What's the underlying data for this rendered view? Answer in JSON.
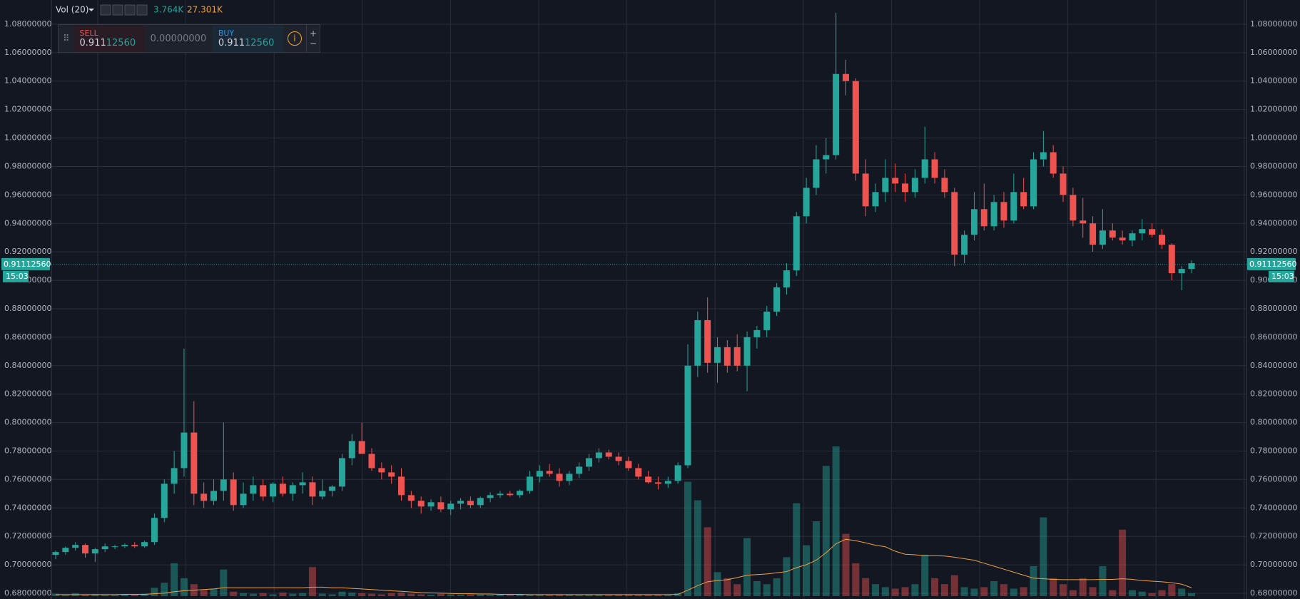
{
  "chart_data": {
    "type": "candlestick",
    "toolbar": {
      "label": "Vol (20)",
      "volume": "3.764K",
      "ma": "27.301K"
    },
    "trade": {
      "sell_label": "SELL",
      "sell_major": "0.911",
      "sell_minor": "12560",
      "spread": "0.00000000",
      "buy_label": "BUY",
      "buy_major": "0.911",
      "buy_minor": "12560",
      "plus": "+",
      "minus": "−"
    },
    "last_price": {
      "value": 0.9111256,
      "label": "0.91112560",
      "time": "15:03"
    },
    "up_color": "#26a69a",
    "down_color": "#ef5350",
    "grid": true,
    "ylim": [
      0.676,
      1.097
    ],
    "yticks": [
      {
        "value": 0.68,
        "label": "0.68000000"
      },
      {
        "value": 0.7,
        "label": "0.70000000"
      },
      {
        "value": 0.72,
        "label": "0.72000000"
      },
      {
        "value": 0.74,
        "label": "0.74000000"
      },
      {
        "value": 0.76,
        "label": "0.76000000"
      },
      {
        "value": 0.78,
        "label": "0.78000000"
      },
      {
        "value": 0.8,
        "label": "0.80000000"
      },
      {
        "value": 0.82,
        "label": "0.82000000"
      },
      {
        "value": 0.84,
        "label": "0.84000000"
      },
      {
        "value": 0.86,
        "label": "0.86000000"
      },
      {
        "value": 0.88,
        "label": "0.88000000"
      },
      {
        "value": 0.9,
        "label": "0.90000000"
      },
      {
        "value": 0.92,
        "label": "0.92000000"
      },
      {
        "value": 0.94,
        "label": "0.94000000"
      },
      {
        "value": 0.96,
        "label": "0.96000000"
      },
      {
        "value": 0.98,
        "label": "0.98000000"
      },
      {
        "value": 1.0,
        "label": "1.00000000"
      },
      {
        "value": 1.02,
        "label": "1.02000000"
      },
      {
        "value": 1.04,
        "label": "1.04000000"
      },
      {
        "value": 1.06,
        "label": "1.06000000"
      },
      {
        "value": 1.08,
        "label": "1.08000000"
      }
    ],
    "candles": [
      [
        0.707,
        0.71,
        0.704,
        0.709
      ],
      [
        0.709,
        0.713,
        0.707,
        0.712
      ],
      [
        0.712,
        0.716,
        0.71,
        0.714
      ],
      [
        0.714,
        0.715,
        0.705,
        0.708
      ],
      [
        0.708,
        0.712,
        0.702,
        0.711
      ],
      [
        0.711,
        0.715,
        0.709,
        0.713
      ],
      [
        0.713,
        0.714,
        0.711,
        0.713
      ],
      [
        0.713,
        0.715,
        0.712,
        0.714
      ],
      [
        0.714,
        0.716,
        0.712,
        0.713
      ],
      [
        0.713,
        0.717,
        0.712,
        0.716
      ],
      [
        0.716,
        0.736,
        0.714,
        0.733
      ],
      [
        0.733,
        0.76,
        0.73,
        0.757
      ],
      [
        0.757,
        0.78,
        0.75,
        0.768
      ],
      [
        0.768,
        0.852,
        0.762,
        0.793
      ],
      [
        0.793,
        0.815,
        0.742,
        0.75
      ],
      [
        0.75,
        0.758,
        0.74,
        0.745
      ],
      [
        0.745,
        0.76,
        0.742,
        0.752
      ],
      [
        0.752,
        0.8,
        0.745,
        0.76
      ],
      [
        0.76,
        0.765,
        0.738,
        0.742
      ],
      [
        0.742,
        0.758,
        0.74,
        0.75
      ],
      [
        0.75,
        0.762,
        0.745,
        0.756
      ],
      [
        0.756,
        0.76,
        0.745,
        0.748
      ],
      [
        0.748,
        0.758,
        0.744,
        0.757
      ],
      [
        0.757,
        0.762,
        0.748,
        0.75
      ],
      [
        0.75,
        0.758,
        0.745,
        0.756
      ],
      [
        0.756,
        0.765,
        0.75,
        0.758
      ],
      [
        0.758,
        0.762,
        0.742,
        0.748
      ],
      [
        0.748,
        0.76,
        0.746,
        0.752
      ],
      [
        0.752,
        0.756,
        0.748,
        0.755
      ],
      [
        0.755,
        0.778,
        0.752,
        0.775
      ],
      [
        0.775,
        0.792,
        0.77,
        0.787
      ],
      [
        0.787,
        0.8,
        0.778,
        0.778
      ],
      [
        0.778,
        0.782,
        0.766,
        0.768
      ],
      [
        0.768,
        0.772,
        0.76,
        0.765
      ],
      [
        0.765,
        0.77,
        0.757,
        0.762
      ],
      [
        0.762,
        0.768,
        0.745,
        0.749
      ],
      [
        0.749,
        0.752,
        0.74,
        0.745
      ],
      [
        0.745,
        0.748,
        0.736,
        0.741
      ],
      [
        0.741,
        0.746,
        0.738,
        0.744
      ],
      [
        0.744,
        0.748,
        0.737,
        0.739
      ],
      [
        0.739,
        0.745,
        0.735,
        0.743
      ],
      [
        0.743,
        0.747,
        0.739,
        0.745
      ],
      [
        0.745,
        0.748,
        0.74,
        0.742
      ],
      [
        0.742,
        0.748,
        0.74,
        0.747
      ],
      [
        0.747,
        0.751,
        0.744,
        0.749
      ],
      [
        0.749,
        0.752,
        0.747,
        0.75
      ],
      [
        0.75,
        0.752,
        0.748,
        0.749
      ],
      [
        0.749,
        0.753,
        0.747,
        0.752
      ],
      [
        0.752,
        0.766,
        0.75,
        0.762
      ],
      [
        0.762,
        0.77,
        0.758,
        0.766
      ],
      [
        0.766,
        0.771,
        0.762,
        0.764
      ],
      [
        0.764,
        0.768,
        0.755,
        0.759
      ],
      [
        0.759,
        0.766,
        0.756,
        0.764
      ],
      [
        0.764,
        0.772,
        0.761,
        0.769
      ],
      [
        0.769,
        0.778,
        0.766,
        0.775
      ],
      [
        0.775,
        0.782,
        0.772,
        0.779
      ],
      [
        0.779,
        0.781,
        0.774,
        0.776
      ],
      [
        0.776,
        0.779,
        0.77,
        0.773
      ],
      [
        0.773,
        0.776,
        0.766,
        0.768
      ],
      [
        0.768,
        0.771,
        0.76,
        0.762
      ],
      [
        0.762,
        0.766,
        0.757,
        0.758
      ],
      [
        0.758,
        0.762,
        0.753,
        0.757
      ],
      [
        0.757,
        0.762,
        0.754,
        0.759
      ],
      [
        0.759,
        0.772,
        0.757,
        0.77
      ],
      [
        0.77,
        0.855,
        0.768,
        0.84
      ],
      [
        0.84,
        0.878,
        0.832,
        0.872
      ],
      [
        0.872,
        0.888,
        0.835,
        0.842
      ],
      [
        0.842,
        0.86,
        0.828,
        0.853
      ],
      [
        0.853,
        0.858,
        0.835,
        0.84
      ],
      [
        0.853,
        0.862,
        0.836,
        0.84
      ],
      [
        0.84,
        0.864,
        0.822,
        0.86
      ],
      [
        0.86,
        0.868,
        0.852,
        0.865
      ],
      [
        0.865,
        0.882,
        0.86,
        0.878
      ],
      [
        0.878,
        0.898,
        0.875,
        0.895
      ],
      [
        0.895,
        0.912,
        0.89,
        0.907
      ],
      [
        0.907,
        0.948,
        0.903,
        0.945
      ],
      [
        0.945,
        0.972,
        0.94,
        0.965
      ],
      [
        0.965,
        0.995,
        0.96,
        0.985
      ],
      [
        0.985,
        1.0,
        0.975,
        0.988
      ],
      [
        0.988,
        1.088,
        0.985,
        1.045
      ],
      [
        1.045,
        1.055,
        1.03,
        1.04
      ],
      [
        1.04,
        1.042,
        0.97,
        0.975
      ],
      [
        0.975,
        0.985,
        0.945,
        0.952
      ],
      [
        0.952,
        0.968,
        0.948,
        0.962
      ],
      [
        0.962,
        0.985,
        0.955,
        0.972
      ],
      [
        0.972,
        0.982,
        0.962,
        0.968
      ],
      [
        0.968,
        0.975,
        0.955,
        0.962
      ],
      [
        0.962,
        0.978,
        0.958,
        0.972
      ],
      [
        0.972,
        1.008,
        0.968,
        0.985
      ],
      [
        0.985,
        0.99,
        0.968,
        0.972
      ],
      [
        0.972,
        0.978,
        0.958,
        0.962
      ],
      [
        0.962,
        0.965,
        0.91,
        0.918
      ],
      [
        0.918,
        0.935,
        0.912,
        0.932
      ],
      [
        0.932,
        0.962,
        0.928,
        0.95
      ],
      [
        0.95,
        0.968,
        0.935,
        0.938
      ],
      [
        0.938,
        0.96,
        0.935,
        0.955
      ],
      [
        0.955,
        0.962,
        0.937,
        0.942
      ],
      [
        0.942,
        0.975,
        0.94,
        0.962
      ],
      [
        0.962,
        0.972,
        0.95,
        0.952
      ],
      [
        0.952,
        0.99,
        0.95,
        0.985
      ],
      [
        0.985,
        1.005,
        0.98,
        0.99
      ],
      [
        0.99,
        0.995,
        0.972,
        0.975
      ],
      [
        0.975,
        0.98,
        0.955,
        0.96
      ],
      [
        0.96,
        0.965,
        0.938,
        0.942
      ],
      [
        0.942,
        0.958,
        0.93,
        0.94
      ],
      [
        0.94,
        0.945,
        0.92,
        0.925
      ],
      [
        0.925,
        0.95,
        0.922,
        0.935
      ],
      [
        0.935,
        0.94,
        0.928,
        0.93
      ],
      [
        0.93,
        0.935,
        0.925,
        0.928
      ],
      [
        0.928,
        0.935,
        0.924,
        0.933
      ],
      [
        0.933,
        0.943,
        0.928,
        0.936
      ],
      [
        0.936,
        0.94,
        0.93,
        0.932
      ],
      [
        0.932,
        0.936,
        0.922,
        0.925
      ],
      [
        0.925,
        0.926,
        0.9,
        0.905
      ],
      [
        0.905,
        0.91,
        0.893,
        0.908
      ],
      [
        0.908,
        0.914,
        0.905,
        0.912
      ]
    ],
    "vlim": [
      0,
      2000
    ],
    "volume": [
      8,
      6,
      10,
      5,
      7,
      6,
      4,
      5,
      6,
      8,
      28,
      45,
      110,
      60,
      40,
      20,
      25,
      89,
      15,
      10,
      8,
      10,
      6,
      12,
      8,
      10,
      97,
      8,
      6,
      15,
      12,
      10,
      8,
      6,
      10,
      12,
      8,
      6,
      5,
      8,
      6,
      5,
      6,
      5,
      4,
      5,
      4,
      6,
      5,
      6,
      4,
      5,
      6,
      4,
      5,
      6,
      4,
      5,
      6,
      4,
      5,
      4,
      5,
      10,
      382,
      320,
      230,
      80,
      60,
      40,
      194,
      50,
      40,
      60,
      130,
      310,
      170,
      250,
      435,
      500,
      208,
      110,
      60,
      40,
      30,
      25,
      30,
      40,
      138,
      60,
      40,
      70,
      30,
      25,
      30,
      50,
      40,
      25,
      30,
      100,
      263,
      60,
      40,
      20,
      60,
      30,
      100,
      20,
      222,
      20,
      15,
      10,
      20,
      40,
      25,
      10
    ],
    "volume_ma": [
      5,
      5,
      5,
      5,
      5,
      5,
      5,
      6,
      6,
      6,
      8,
      10,
      15,
      18,
      20,
      22,
      24,
      28,
      28,
      28,
      28,
      28,
      28,
      28,
      28,
      28,
      30,
      30,
      28,
      28,
      26,
      24,
      22,
      20,
      18,
      16,
      14,
      12,
      11,
      10,
      9,
      8,
      8,
      7,
      7,
      6,
      6,
      6,
      5,
      5,
      5,
      5,
      5,
      5,
      5,
      5,
      5,
      5,
      5,
      5,
      5,
      5,
      5,
      6,
      20,
      35,
      48,
      52,
      55,
      62,
      70,
      72,
      74,
      78,
      82,
      95,
      105,
      120,
      145,
      175,
      190,
      185,
      178,
      170,
      165,
      150,
      140,
      138,
      135,
      135,
      134,
      130,
      125,
      120,
      110,
      100,
      90,
      80,
      70,
      60,
      58,
      56,
      55,
      55,
      55,
      55,
      56,
      56,
      58,
      56,
      52,
      50,
      48,
      45,
      40,
      28
    ]
  }
}
